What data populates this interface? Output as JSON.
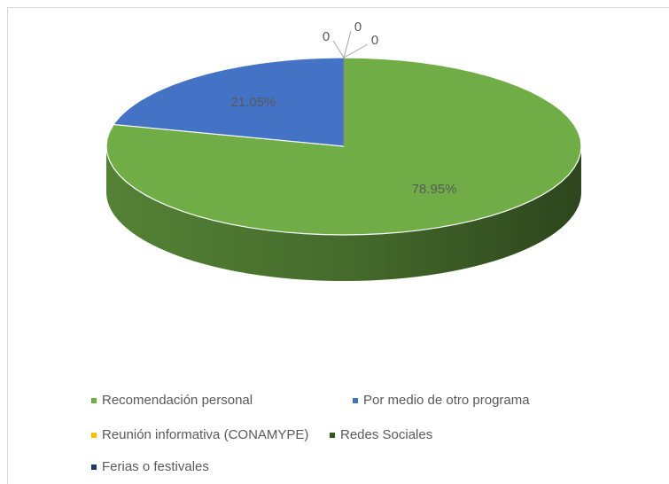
{
  "chart_data": {
    "type": "pie",
    "categories": [
      "Recomendación personal",
      "Por medio de otro programa",
      "Reunión informativa (CONAMYPE)",
      "Redes Sociales",
      "Ferias o festivales"
    ],
    "values": [
      78.95,
      21.05,
      0,
      0,
      0
    ],
    "value_labels": [
      "78.95%",
      "21.05%",
      "0",
      "0",
      "0"
    ],
    "colors": [
      "#70ad47",
      "#4472c4",
      "#ffc000",
      "#375623",
      "#1f3864"
    ],
    "legend": "bottom"
  }
}
